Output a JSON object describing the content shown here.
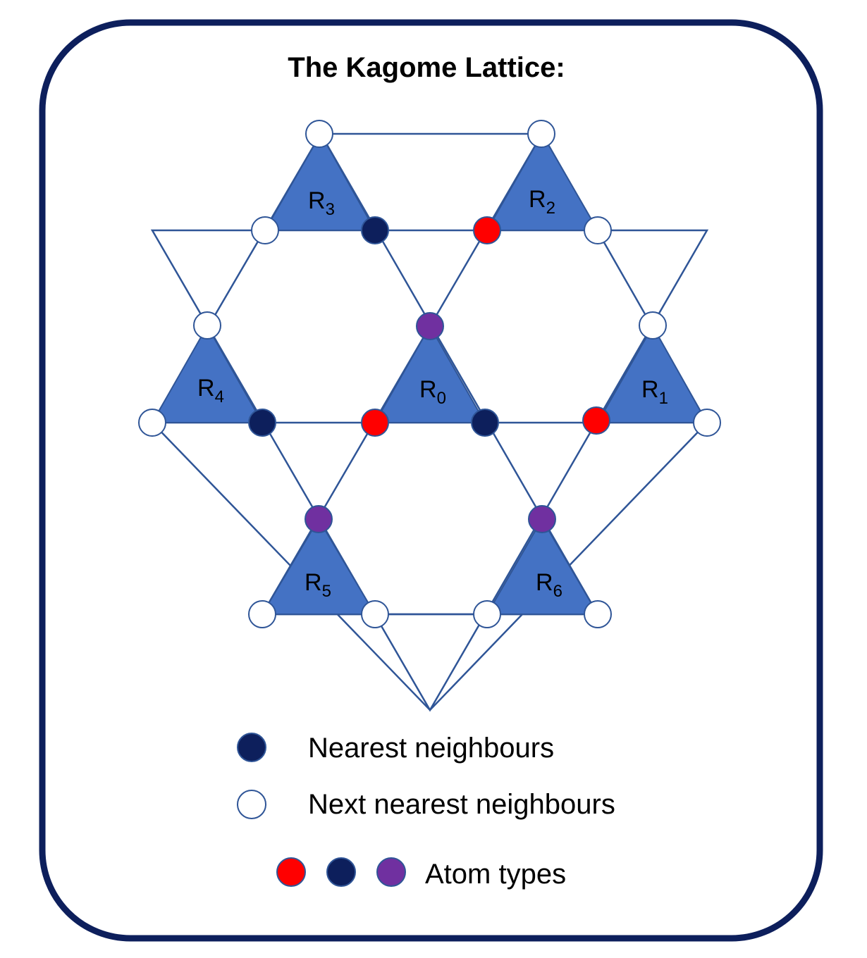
{
  "title": "The Kagome Lattice:",
  "colors": {
    "frame": "#0d1f5c",
    "triangle_fill": "#4472c4",
    "triangle_stroke": "#2f5597",
    "line": "#2f5597",
    "nearest": "#0d1f5c",
    "red": "#ff0000",
    "purple": "#7030a0",
    "open_fill": "#ffffff"
  },
  "triangles": [
    {
      "id": "R0",
      "letter": "R",
      "sub": "0"
    },
    {
      "id": "R1",
      "letter": "R",
      "sub": "1"
    },
    {
      "id": "R2",
      "letter": "R",
      "sub": "2"
    },
    {
      "id": "R3",
      "letter": "R",
      "sub": "3"
    },
    {
      "id": "R4",
      "letter": "R",
      "sub": "4"
    },
    {
      "id": "R5",
      "letter": "R",
      "sub": "5"
    },
    {
      "id": "R6",
      "letter": "R",
      "sub": "6"
    }
  ],
  "legend": {
    "nearest_label": "Nearest neighbours",
    "next_nearest_label": "Next nearest neighbours",
    "atom_types_label": "Atom types"
  },
  "icons": {
    "nearest": "filled-circle-icon",
    "next_nearest": "open-circle-icon",
    "atom_types": "colored-circle-icons"
  }
}
